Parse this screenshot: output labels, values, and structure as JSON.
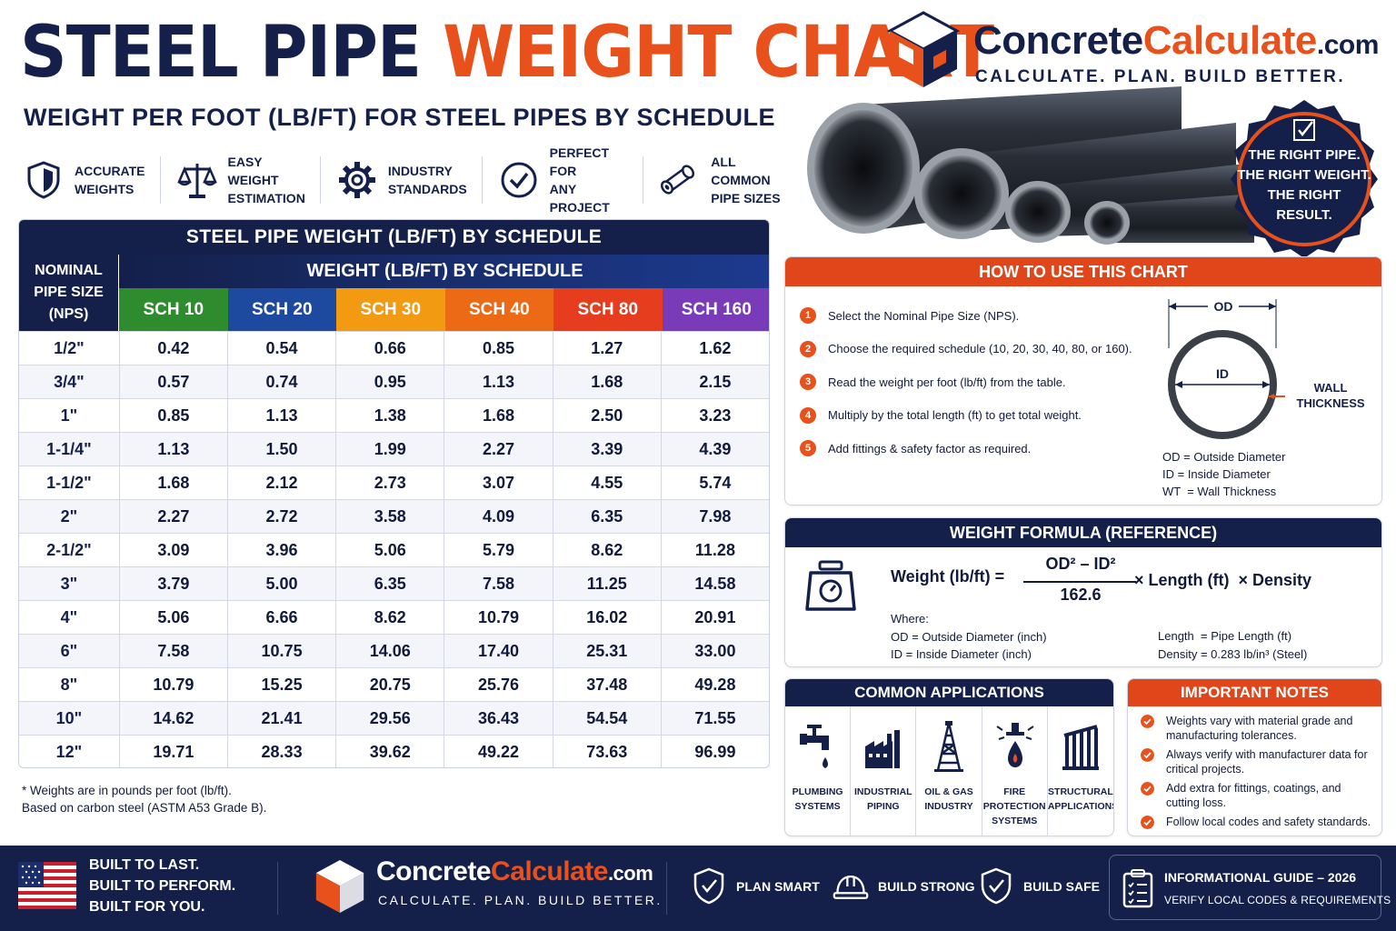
{
  "header": {
    "title_part1": "STEEL PIPE",
    "title_part2": "WEIGHT CHART",
    "subtitle": "WEIGHT PER FOOT (LB/FT) FOR STEEL PIPES BY SCHEDULE"
  },
  "features": [
    {
      "icon": "shield-check-icon",
      "label": "ACCURATE\nWEIGHTS"
    },
    {
      "icon": "balance-scale-icon",
      "label": "EASY WEIGHT\nESTIMATION"
    },
    {
      "icon": "gear-icon",
      "label": "INDUSTRY\nSTANDARDS"
    },
    {
      "icon": "check-circle-icon",
      "label": "PERFECT FOR\nANY PROJECT"
    },
    {
      "icon": "pipe-icon",
      "label": "ALL COMMON\nPIPE SIZES"
    }
  ],
  "brand": {
    "name_part1": "Concrete",
    "name_part2": "Calculate",
    "name_part3": ".com",
    "tagline": "CALCULATE. PLAN. BUILD BETTER."
  },
  "badge": {
    "text": "THE RIGHT PIPE.\nTHE RIGHT WEIGHT.\nTHE RIGHT\nRESULT."
  },
  "table": {
    "title": "STEEL PIPE WEIGHT (LB/FT) BY SCHEDULE",
    "nps_header": "NOMINAL\nPIPE SIZE\n(NPS)",
    "group_header": "WEIGHT (LB/FT) BY SCHEDULE",
    "schedules": [
      {
        "label": "SCH 10",
        "color": "#2e8b2e"
      },
      {
        "label": "SCH 20",
        "color": "#1d4a9e"
      },
      {
        "label": "SCH 30",
        "color": "#f29a12"
      },
      {
        "label": "SCH 40",
        "color": "#ec6a16"
      },
      {
        "label": "SCH 80",
        "color": "#e53d1d"
      },
      {
        "label": "SCH 160",
        "color": "#7a3bb8"
      }
    ],
    "rows": [
      {
        "nps": "1/2\"",
        "values": [
          "0.42",
          "0.54",
          "0.66",
          "0.85",
          "1.27",
          "1.62"
        ]
      },
      {
        "nps": "3/4\"",
        "values": [
          "0.57",
          "0.74",
          "0.95",
          "1.13",
          "1.68",
          "2.15"
        ]
      },
      {
        "nps": "1\"",
        "values": [
          "0.85",
          "1.13",
          "1.38",
          "1.68",
          "2.50",
          "3.23"
        ]
      },
      {
        "nps": "1-1/4\"",
        "values": [
          "1.13",
          "1.50",
          "1.99",
          "2.27",
          "3.39",
          "4.39"
        ]
      },
      {
        "nps": "1-1/2\"",
        "values": [
          "1.68",
          "2.12",
          "2.73",
          "3.07",
          "4.55",
          "5.74"
        ]
      },
      {
        "nps": "2\"",
        "values": [
          "2.27",
          "2.72",
          "3.58",
          "4.09",
          "6.35",
          "7.98"
        ]
      },
      {
        "nps": "2-1/2\"",
        "values": [
          "3.09",
          "3.96",
          "5.06",
          "5.79",
          "8.62",
          "11.28"
        ]
      },
      {
        "nps": "3\"",
        "values": [
          "3.79",
          "5.00",
          "6.35",
          "7.58",
          "11.25",
          "14.58"
        ]
      },
      {
        "nps": "4\"",
        "values": [
          "5.06",
          "6.66",
          "8.62",
          "10.79",
          "16.02",
          "20.91"
        ]
      },
      {
        "nps": "6\"",
        "values": [
          "7.58",
          "10.75",
          "14.06",
          "17.40",
          "25.31",
          "33.00"
        ]
      },
      {
        "nps": "8\"",
        "values": [
          "10.79",
          "15.25",
          "20.75",
          "25.76",
          "37.48",
          "49.28"
        ]
      },
      {
        "nps": "10\"",
        "values": [
          "14.62",
          "21.41",
          "29.56",
          "36.43",
          "54.54",
          "71.55"
        ]
      },
      {
        "nps": "12\"",
        "values": [
          "19.71",
          "28.33",
          "39.62",
          "49.22",
          "73.63",
          "96.99"
        ]
      }
    ],
    "footnote": "* Weights are in pounds per foot (lb/ft).\n   Based on carbon steel (ASTM A53 Grade B)."
  },
  "howto": {
    "title": "HOW TO USE THIS CHART",
    "steps": [
      {
        "num": "1",
        "text": "Select the Nominal Pipe Size (NPS)."
      },
      {
        "num": "2",
        "text": "Choose the required schedule (10, 20, 30, 40, 80, or 160)."
      },
      {
        "num": "3",
        "text": "Read the weight per foot (lb/ft) from the table."
      },
      {
        "num": "4",
        "text": "Multiply by the total length (ft) to get total weight."
      },
      {
        "num": "5",
        "text": "Add fittings & safety factor as required."
      }
    ],
    "diagram": {
      "od_label": "OD",
      "id_label": "ID",
      "wall_label_1": "WALL",
      "wall_label_2": "THICKNESS"
    },
    "legend": [
      "OD = Outside Diameter",
      "ID = Inside Diameter",
      "WT  = Wall Thickness"
    ]
  },
  "formula": {
    "title": "WEIGHT FORMULA (REFERENCE)",
    "lhs": "Weight (lb/ft) =",
    "numerator": "OD² – ID²",
    "denominator": "162.6",
    "rhs": "× Length (ft)  × Density",
    "where_left": "Where:\nOD = Outside Diameter (inch)\nID = Inside Diameter (inch)",
    "where_right": "Length  = Pipe Length (ft)\nDensity = 0.283 lb/in³ (Steel)"
  },
  "applications": {
    "title": "COMMON APPLICATIONS",
    "items": [
      {
        "icon": "faucet-icon",
        "label": "PLUMBING\nSYSTEMS"
      },
      {
        "icon": "factory-icon",
        "label": "INDUSTRIAL\nPIPING"
      },
      {
        "icon": "oil-rig-icon",
        "label": "OIL & GAS\nINDUSTRY"
      },
      {
        "icon": "fire-sprinkler-icon",
        "label": "FIRE PROTECTION\nSYSTEMS"
      },
      {
        "icon": "structure-icon",
        "label": "STRUCTURAL\nAPPLICATIONS"
      }
    ]
  },
  "notes": {
    "title": "IMPORTANT NOTES",
    "items": [
      "Weights vary with material grade and manufacturing tolerances.",
      "Always verify with manufacturer data for critical projects.",
      "Add extra for fittings, coatings, and cutting loss.",
      "Follow local codes and safety standards."
    ]
  },
  "footer": {
    "slogan": "BUILT TO LAST.\nBUILT TO PERFORM.\nBUILT FOR YOU.",
    "brand_part1": "Concrete",
    "brand_part2": "Calculate",
    "brand_part3": ".com",
    "tagline": "CALCULATE. PLAN. BUILD BETTER.",
    "items": [
      {
        "icon": "shield-check-icon",
        "label": "PLAN SMART"
      },
      {
        "icon": "hard-hat-icon",
        "label": "BUILD STRONG"
      },
      {
        "icon": "shield-check-icon",
        "label": "BUILD SAFE"
      }
    ],
    "info_line1": "INFORMATIONAL GUIDE – 2026",
    "info_line2": "VERIFY LOCAL CODES & REQUIREMENTS"
  },
  "colors": {
    "navy": "#14204a",
    "orange": "#e8501c"
  }
}
